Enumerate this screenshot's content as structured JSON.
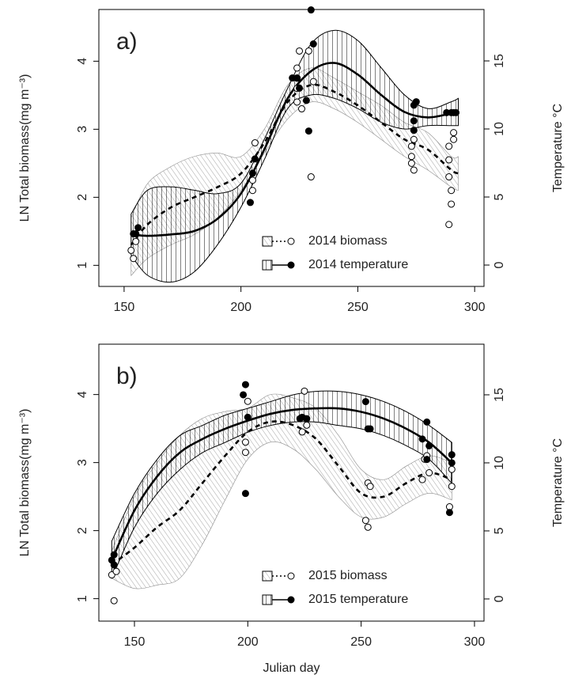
{
  "chart_data": [
    {
      "type": "scatter",
      "title": "a)",
      "y_label": "LN Total biomass(mg m⁻³)",
      "y2_label": "Temperature °C",
      "xlim": [
        139.2,
        304
      ],
      "xticks": [
        150,
        200,
        250,
        300
      ],
      "ylim": [
        0.69,
        4.76
      ],
      "yticks": [
        1,
        2,
        3,
        4
      ],
      "y2lim": [
        -1.57,
        18.78
      ],
      "y2ticks": [
        0,
        5,
        10,
        15
      ],
      "legend": "bottom-right",
      "series": [
        {
          "name": "2014 biomass",
          "axis": "y",
          "color": "#000000",
          "band_color": "#8c8c8c",
          "marker": "open",
          "line": "dashed",
          "x": [
            153,
            154,
            155,
            205,
            205,
            206,
            224,
            224,
            224,
            224,
            225,
            226,
            229,
            230,
            231,
            273,
            273,
            273,
            274,
            274,
            289,
            289,
            289,
            289,
            290,
            290,
            291,
            291
          ],
          "values": [
            1.22,
            1.1,
            1.35,
            2.1,
            2.25,
            2.8,
            3.75,
            3.9,
            3.6,
            3.4,
            4.15,
            3.3,
            4.15,
            2.3,
            3.7,
            2.75,
            2.6,
            2.5,
            2.4,
            2.85,
            1.6,
            2.3,
            2.55,
            2.75,
            1.9,
            2.1,
            2.95,
            2.85
          ],
          "fit": {
            "x": [
              153,
              160,
              170,
              180,
              190,
              200,
              210,
              220,
              230,
              240,
              250,
              260,
              270,
              280,
              290,
              293
            ],
            "values": [
              1.3,
              1.6,
              1.85,
              2.0,
              2.15,
              2.35,
              2.8,
              3.4,
              3.65,
              3.55,
              3.35,
              3.1,
              2.85,
              2.7,
              2.4,
              2.35
            ],
            "upper": [
              1.7,
              2.2,
              2.45,
              2.6,
              2.65,
              2.6,
              3.0,
              3.65,
              3.9,
              3.75,
              3.55,
              3.35,
              3.1,
              2.95,
              2.6,
              2.6
            ],
            "lower": [
              0.85,
              1.1,
              1.3,
              1.45,
              1.7,
              2.1,
              2.65,
              3.15,
              3.4,
              3.3,
              3.1,
              2.85,
              2.6,
              2.4,
              2.15,
              2.1
            ]
          }
        },
        {
          "name": "2014 temperature",
          "axis": "y2",
          "color": "#000000",
          "band_color": "#000000",
          "marker": "filled",
          "line": "solid",
          "x": [
            154,
            155,
            156,
            204,
            205,
            206,
            222,
            224,
            225,
            228,
            229,
            230,
            231,
            274,
            274,
            274,
            275,
            288,
            290,
            291,
            292
          ],
          "values": [
            2.3,
            2.3,
            2.75,
            4.6,
            6.75,
            7.8,
            13.75,
            13.75,
            13.0,
            12.1,
            9.85,
            18.75,
            16.25,
            11.75,
            10.6,
            9.9,
            12.0,
            11.2,
            11.2,
            11.2,
            11.2
          ],
          "fit": {
            "x": [
              153,
              160,
              170,
              180,
              190,
              200,
              210,
              220,
              230,
              240,
              250,
              260,
              270,
              280,
              290,
              293
            ],
            "values": [
              2.25,
              2.15,
              2.25,
              2.5,
              3.4,
              5.25,
              8.5,
              12.25,
              14.25,
              14.85,
              14,
              12.5,
              11.25,
              10.85,
              11.15,
              11.25
            ],
            "upper": [
              3.75,
              5.5,
              5.75,
              5.5,
              5.25,
              6,
              9.25,
              13,
              16.25,
              17.25,
              16.5,
              14.5,
              12.5,
              11.5,
              12,
              12.25
            ],
            "lower": [
              0.75,
              -0.75,
              -1.25,
              -0.5,
              1.5,
              4.25,
              7.75,
              11.5,
              12.5,
              12.25,
              11.5,
              10.5,
              10,
              10.25,
              10.25,
              10.25
            ]
          }
        }
      ]
    },
    {
      "type": "scatter",
      "title": "b)",
      "x_label": "Julian day",
      "y_label": "LN Total biomass(mg m⁻³)",
      "y2_label": "Temperature °C",
      "xlim": [
        134.3,
        304.2
      ],
      "xticks": [
        150,
        200,
        250,
        300
      ],
      "ylim": [
        0.67,
        4.74
      ],
      "yticks": [
        1,
        2,
        3,
        4
      ],
      "y2lim": [
        -1.63,
        18.72
      ],
      "y2ticks": [
        0,
        5,
        10,
        15
      ],
      "legend": "bottom-right",
      "series": [
        {
          "name": "2015 biomass",
          "axis": "y",
          "color": "#000000",
          "band_color": "#8c8c8c",
          "marker": "open",
          "line": "dashed",
          "x": [
            140,
            141,
            142,
            199,
            199,
            200,
            224,
            225,
            226,
            252,
            253,
            253,
            254,
            277,
            278,
            279,
            280,
            289,
            290,
            290
          ],
          "values": [
            1.35,
            0.97,
            1.4,
            3.15,
            3.3,
            3.9,
            3.45,
            4.05,
            3.55,
            2.15,
            2.05,
            2.7,
            2.65,
            2.75,
            3.05,
            3.1,
            2.85,
            2.35,
            2.65,
            2.9
          ],
          "fit": {
            "x": [
              140,
              150,
              160,
              170,
              180,
              190,
              200,
              210,
              220,
              230,
              240,
              250,
              260,
              270,
              280,
              290
            ],
            "values": [
              1.5,
              1.75,
              2.05,
              2.3,
              2.7,
              3.1,
              3.45,
              3.6,
              3.55,
              3.35,
              2.95,
              2.55,
              2.5,
              2.7,
              2.85,
              2.75
            ],
            "upper": [
              1.7,
              2.5,
              3.0,
              3.4,
              3.65,
              3.75,
              3.8,
              4.0,
              3.95,
              3.8,
              3.4,
              2.9,
              2.75,
              2.95,
              3.1,
              3.0
            ],
            "lower": [
              1.3,
              1.15,
              1.2,
              1.3,
              1.8,
              2.45,
              3.05,
              3.3,
              3.2,
              2.9,
              2.5,
              2.2,
              2.2,
              2.4,
              2.55,
              2.45
            ]
          }
        },
        {
          "name": "2015 temperature",
          "axis": "y2",
          "color": "#000000",
          "band_color": "#000000",
          "marker": "filled",
          "line": "solid",
          "x": [
            140,
            141,
            141,
            198,
            199,
            199,
            200,
            223,
            224,
            226,
            252,
            253,
            254,
            277,
            279,
            280,
            279,
            289,
            290,
            290
          ],
          "values": [
            2.85,
            3.25,
            2.5,
            15,
            15.75,
            7.75,
            13.35,
            13.25,
            13.35,
            13.25,
            14.5,
            12.5,
            12.5,
            11.75,
            13,
            11.25,
            10.25,
            6.35,
            10,
            10.6
          ],
          "fit": {
            "x": [
              140,
              150,
              160,
              170,
              180,
              190,
              200,
              210,
              220,
              230,
              240,
              250,
              260,
              270,
              280,
              290
            ],
            "values": [
              2.85,
              6.5,
              9,
              10.75,
              11.75,
              12.5,
              13.1,
              13.6,
              13.9,
              14,
              14,
              13.75,
              13.25,
              12.5,
              11.5,
              10
            ],
            "upper": [
              4.25,
              7.75,
              10.25,
              12,
              12.75,
              13.5,
              14,
              14.5,
              15,
              15.25,
              15.25,
              15,
              14.5,
              13.75,
              12.75,
              11.5
            ],
            "lower": [
              1.5,
              5.25,
              7.75,
              9.5,
              10.75,
              11.5,
              12.25,
              12.75,
              13,
              13,
              12.75,
              12.5,
              12,
              11.25,
              10.25,
              8.5
            ]
          }
        }
      ]
    }
  ]
}
